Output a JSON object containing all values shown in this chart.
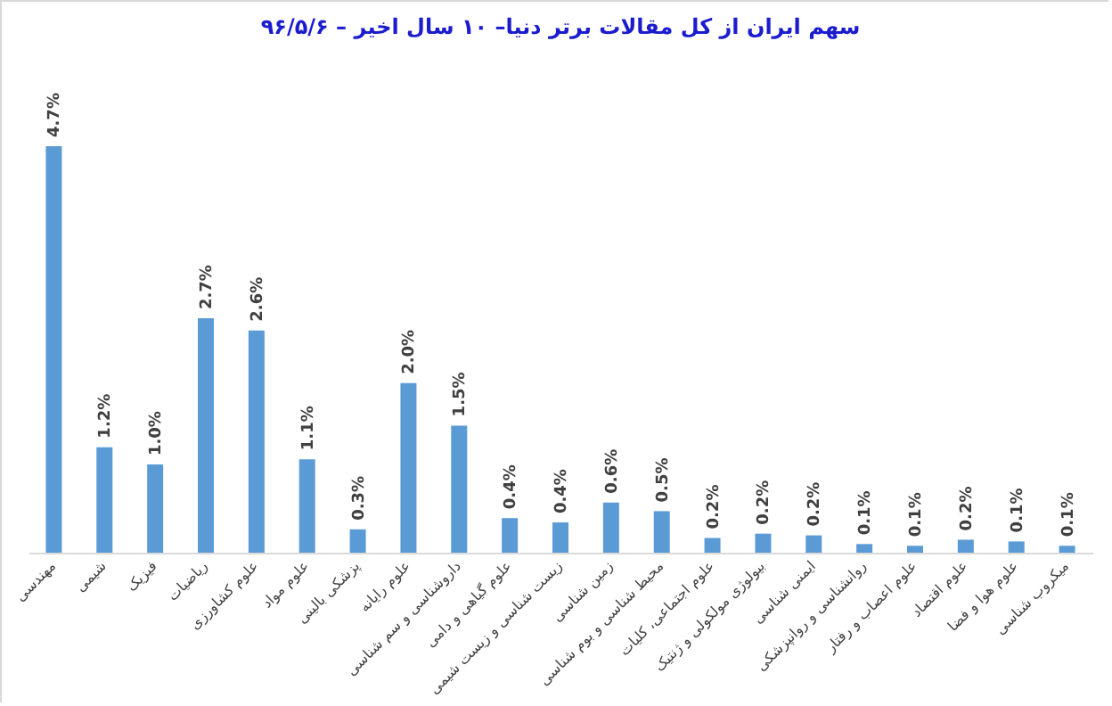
{
  "chart_data": {
    "type": "bar",
    "title": "سهم ایران از کل مقالات برتر دنیا– ۱۰ سال اخیر – ۹۶/۵/۶",
    "categories": [
      "مهندسی",
      "شیمی",
      "فیزیک",
      "ریاضیات",
      "علوم کشاورزی",
      "علوم مواد",
      "پزشکی بالینی",
      "علوم رایانه",
      "داروشناسی و سم شناسی",
      "علوم گیاهی و دامی",
      "زیست شناسی و زیست شیمی",
      "زمین شناسی",
      "محیط شناسی و بوم شناسی",
      "علوم اجتماعی، کلیات",
      "بیولوژی مولکولی و ژنتیک",
      "ایمنی شناسی",
      "روانشناسی و روانپزشکی",
      "علوم اعصاب و رفتار",
      "علوم اقتصاد",
      "علوم هوا و فضا",
      "میکروب شناسی"
    ],
    "values": [
      4.7,
      1.22,
      1.02,
      2.71,
      2.57,
      1.08,
      0.27,
      1.96,
      1.47,
      0.4,
      0.35,
      0.58,
      0.48,
      0.17,
      0.22,
      0.2,
      0.1,
      0.08,
      0.15,
      0.13,
      0.08
    ],
    "value_labels": [
      "4.7%",
      "1.2%",
      "1.0%",
      "2.7%",
      "2.6%",
      "1.1%",
      "0.3%",
      "2.0%",
      "1.5%",
      "0.4%",
      "0.4%",
      "0.6%",
      "0.5%",
      "0.2%",
      "0.2%",
      "0.2%",
      "0.1%",
      "0.1%",
      "0.2%",
      "0.1%",
      "0.1%"
    ],
    "color": "#5b9bd5"
  }
}
